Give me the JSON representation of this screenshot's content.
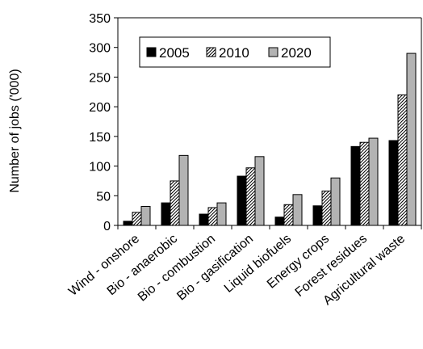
{
  "chart_data": {
    "type": "bar",
    "title": "",
    "xlabel": "",
    "ylabel": "Number of jobs ('000)",
    "ylim": [
      0,
      350
    ],
    "yticks": [
      0,
      50,
      100,
      150,
      200,
      250,
      300,
      350
    ],
    "grid": false,
    "legend_position": "top-left",
    "categories": [
      "Wind - onshore",
      "Bio - anaerobic",
      "Bio - combustion",
      "Bio - gasification",
      "Liquid biofuels",
      "Energy crops",
      "Forest residues",
      "Agricultural waste"
    ],
    "series": [
      {
        "name": "2005",
        "values": [
          7,
          38,
          19,
          83,
          14,
          33,
          133,
          143
        ],
        "color": "#000000",
        "pattern": "solid"
      },
      {
        "name": "2010",
        "values": [
          22,
          75,
          30,
          97,
          35,
          58,
          140,
          220
        ],
        "color": "#ffffff",
        "pattern": "hatch"
      },
      {
        "name": "2020",
        "values": [
          32,
          118,
          38,
          116,
          52,
          80,
          147,
          290
        ],
        "color": "#b3b3b3",
        "pattern": "solid"
      }
    ]
  }
}
